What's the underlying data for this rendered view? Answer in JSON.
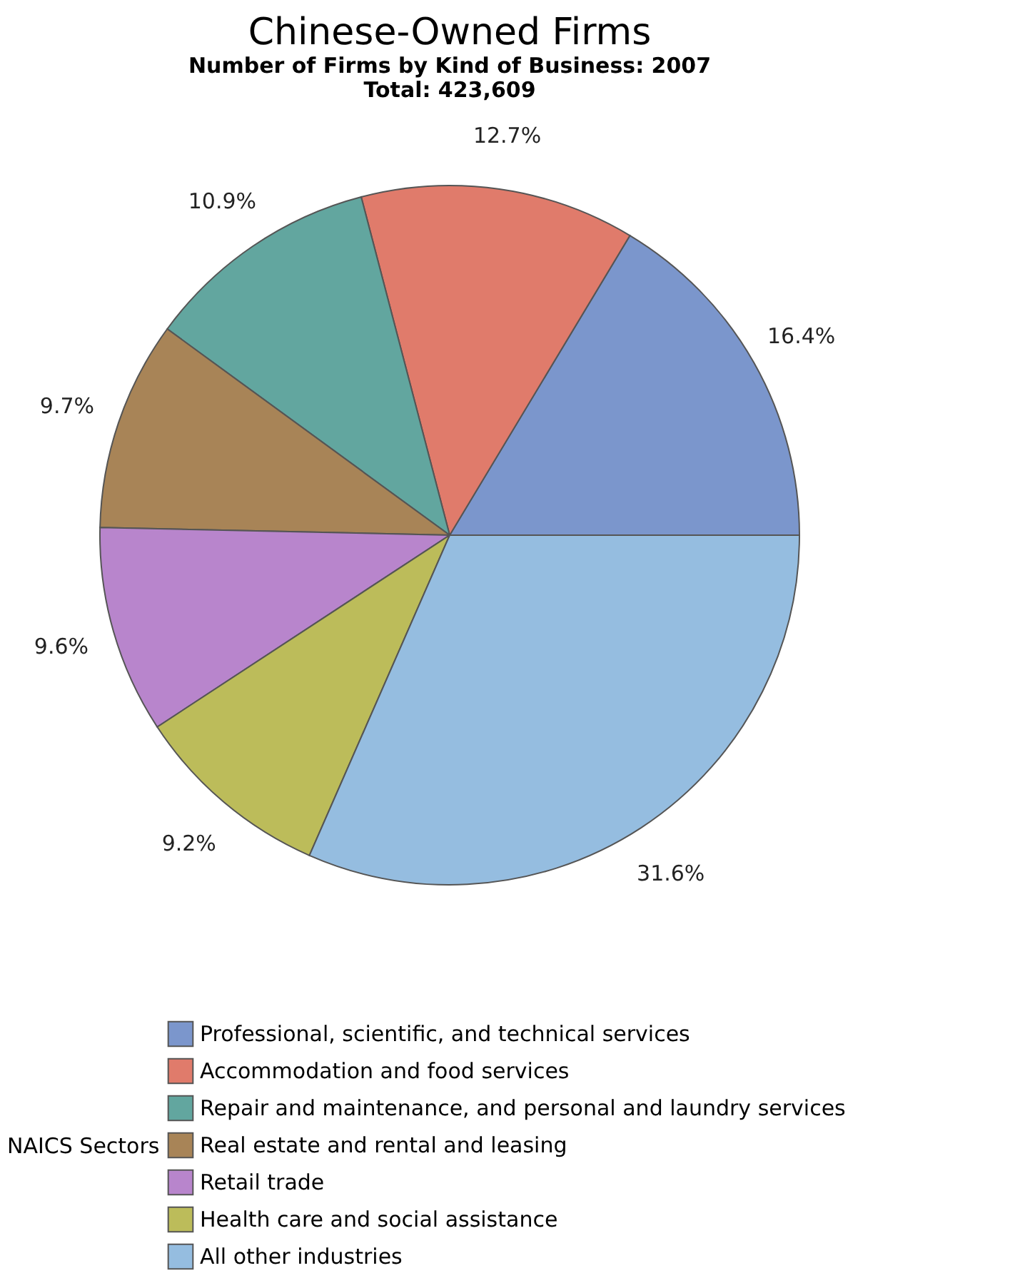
{
  "chart_data": {
    "type": "pie",
    "title": "Chinese-Owned Firms",
    "subtitle": "Number of Firms by Kind of Business: 2007",
    "annotations": [
      "Total: 423,609"
    ],
    "legend_title": "NAICS Sectors",
    "legend": "bottom",
    "categories": [
      "Professional, scientific, and technical services",
      "Accommodation and food services",
      "Repair and maintenance, and personal and laundry services",
      "Real estate and rental and leasing",
      "Retail trade",
      "Health care and social assistance",
      "All other industries"
    ],
    "values": [
      16.4,
      12.7,
      10.9,
      9.7,
      9.6,
      9.2,
      31.6
    ],
    "value_labels": [
      "16.4%",
      "12.7%",
      "10.9%",
      "9.7%",
      "9.6%",
      "9.2%",
      "31.6%"
    ],
    "colors": [
      "#7b96cc",
      "#e07b6b",
      "#62a69f",
      "#a88457",
      "#b885cc",
      "#bcbc5a",
      "#95bde0"
    ]
  }
}
